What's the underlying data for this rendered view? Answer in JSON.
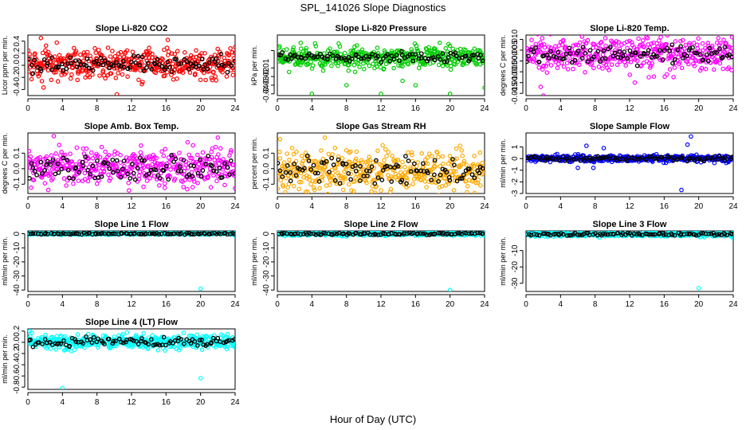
{
  "figure": {
    "title": "SPL_141026  Slope Diagnostics",
    "xlabel": "Hour of Day (UTC)"
  },
  "colors": {
    "background": "#ffffff",
    "axis": "#000000",
    "overlay": "#000000"
  },
  "chart_data": [
    {
      "type": "scatter",
      "title": "Slope Li-820 CO2",
      "ylabel": "Licor ppm per min.",
      "xlim": [
        0,
        24
      ],
      "ylim": [
        -0.5,
        0.5
      ],
      "yticks": [
        0.4,
        0.2,
        0.0,
        -0.2,
        -0.4
      ],
      "ytick_labels": [
        "0.4",
        "0.2",
        "0.0",
        "-0.2",
        "-0.4"
      ],
      "xticks": [
        0,
        4,
        8,
        12,
        16,
        20,
        24
      ],
      "xtick_labels": [
        "0",
        "4",
        "8",
        "12",
        "16",
        "20",
        "24"
      ],
      "series_color": "#ff0000",
      "core_range": [
        -0.08,
        0.12
      ],
      "spread": 0.25,
      "outliers": [
        [
          1.5,
          0.45
        ],
        [
          10.3,
          -0.48
        ],
        [
          16.2,
          0.42
        ],
        [
          24,
          0.3
        ]
      ],
      "series": [
        {
          "name": "samples",
          "color": "#ff0000"
        },
        {
          "name": "overlay",
          "color": "#000000"
        }
      ]
    },
    {
      "type": "scatter",
      "title": "Slope Li-820 Pressure",
      "ylabel": "kPa per min.",
      "xlim": [
        0,
        24
      ],
      "ylim": [
        -0.042,
        0.028
      ],
      "yticks": [
        0.01,
        -0.01,
        -0.02,
        -0.03,
        -0.04
      ],
      "ytick_labels": [
        "",
        "-0.01",
        "-0.02",
        "-0.03",
        "-0.04"
      ],
      "xticks": [
        0,
        4,
        8,
        12,
        16,
        20,
        24
      ],
      "xtick_labels": [
        "0",
        "4",
        "8",
        "12",
        "16",
        "20",
        "24"
      ],
      "series_color": "#00cc00",
      "core_range": [
        -0.002,
        0.006
      ],
      "spread": 0.012,
      "outliers": [
        [
          4,
          -0.04
        ],
        [
          8,
          -0.03
        ],
        [
          12,
          -0.04
        ],
        [
          16,
          -0.03
        ],
        [
          20,
          -0.04
        ],
        [
          24,
          -0.033
        ],
        [
          14.5,
          -0.025
        ],
        [
          2.7,
          0.019
        ],
        [
          18.8,
          0.019
        ]
      ],
      "series": [
        {
          "name": "samples",
          "color": "#00cc00"
        },
        {
          "name": "overlay",
          "color": "#000000"
        }
      ]
    },
    {
      "type": "scatter",
      "title": "Slope Li-820 Temp.",
      "ylabel": "degrees C per min.",
      "xlim": [
        0,
        24
      ],
      "ylim": [
        -0.016,
        0.012
      ],
      "yticks": [
        0.01,
        0.005,
        0.0,
        -0.005,
        -0.01,
        -0.015
      ],
      "ytick_labels": [
        "0.010",
        "0.005",
        "0.000",
        "-0.005",
        "-0.010",
        "-0.015"
      ],
      "xticks": [
        0,
        4,
        8,
        12,
        16,
        20,
        24
      ],
      "xtick_labels": [
        "0",
        "4",
        "8",
        "12",
        "16",
        "20",
        "24"
      ],
      "series_color": "#ff00ff",
      "core_range": [
        0.0,
        0.006
      ],
      "spread": 0.008,
      "outliers": [
        [
          1.7,
          -0.012
        ],
        [
          2,
          -0.016
        ],
        [
          15.6,
          0.011
        ],
        [
          12.6,
          -0.01
        ]
      ],
      "series": [
        {
          "name": "samples",
          "color": "#ff00ff"
        },
        {
          "name": "overlay",
          "color": "#000000"
        }
      ]
    },
    {
      "type": "scatter",
      "title": "Slope Amb. Box Temp.",
      "ylabel": "degrees C per min.",
      "xlim": [
        0,
        24
      ],
      "ylim": [
        -0.16,
        0.23
      ],
      "yticks": [
        0.1,
        0.0,
        -0.1
      ],
      "ytick_labels": [
        "0.1",
        "0.0",
        "-0.1"
      ],
      "xticks": [
        0,
        4,
        8,
        12,
        16,
        20,
        24
      ],
      "xtick_labels": [
        "0",
        "4",
        "8",
        "12",
        "16",
        "20",
        "24"
      ],
      "series_color": "#ff00ff",
      "core_range": [
        -0.06,
        0.08
      ],
      "spread": 0.09,
      "outliers": [
        [
          3,
          0.21
        ],
        [
          22,
          0.2
        ],
        [
          11.7,
          -0.14
        ],
        [
          18.5,
          0.17
        ]
      ],
      "series": [
        {
          "name": "samples",
          "color": "#ff00ff"
        },
        {
          "name": "overlay",
          "color": "#000000"
        }
      ]
    },
    {
      "type": "scatter",
      "title": "Slope Gas Stream RH",
      "ylabel": "percent per min.",
      "xlim": [
        0,
        24
      ],
      "ylim": [
        -0.16,
        0.23
      ],
      "yticks": [
        0.1,
        0.0,
        -0.1
      ],
      "ytick_labels": [
        "0.1",
        "0.0",
        "-0.1"
      ],
      "xticks": [
        0,
        4,
        8,
        12,
        16,
        20,
        24
      ],
      "xtick_labels": [
        "0",
        "4",
        "8",
        "12",
        "16",
        "20",
        "24"
      ],
      "series_color": "#ffaa00",
      "core_range": [
        -0.08,
        0.06
      ],
      "spread": 0.1,
      "outliers": [
        [
          0.3,
          0.19
        ],
        [
          5.5,
          0.2
        ],
        [
          3.5,
          -0.15
        ],
        [
          12,
          -0.14
        ]
      ],
      "series": [
        {
          "name": "samples",
          "color": "#ffaa00"
        },
        {
          "name": "overlay",
          "color": "#000000"
        }
      ]
    },
    {
      "type": "scatter",
      "title": "Slope Sample Flow",
      "ylabel": "ml/min per min.",
      "xlim": [
        0,
        24
      ],
      "ylim": [
        -3,
        2.2
      ],
      "yticks": [
        1,
        0,
        -1,
        -2,
        -3
      ],
      "ytick_labels": [
        "1",
        "0",
        "-1",
        "-2",
        "-3"
      ],
      "xticks": [
        0,
        4,
        8,
        12,
        16,
        20,
        24
      ],
      "xtick_labels": [
        "0",
        "4",
        "8",
        "12",
        "16",
        "20",
        "24"
      ],
      "series_color": "#0000ff",
      "core_range": [
        -0.15,
        0.15
      ],
      "spread": 0.25,
      "outliers": [
        [
          7,
          1.1
        ],
        [
          7.8,
          -0.8
        ],
        [
          18,
          -2.7
        ],
        [
          19.1,
          1.9
        ],
        [
          18.7,
          1.2
        ],
        [
          6,
          -0.8
        ],
        [
          9,
          0.9
        ]
      ],
      "series": [
        {
          "name": "samples",
          "color": "#0000ff"
        },
        {
          "name": "overlay",
          "color": "#000000"
        }
      ]
    },
    {
      "type": "scatter",
      "title": "Slope Line 1 Flow",
      "ylabel": "ml/min per min.",
      "xlim": [
        0,
        24
      ],
      "ylim": [
        -41,
        2
      ],
      "yticks": [
        0,
        -10,
        -20,
        -30,
        -40
      ],
      "ytick_labels": [
        "0",
        "-10",
        "-20",
        "-30",
        "-40"
      ],
      "xticks": [
        0,
        4,
        8,
        12,
        16,
        20,
        24
      ],
      "xtick_labels": [
        "0",
        "4",
        "8",
        "12",
        "16",
        "20",
        "24"
      ],
      "series_color": "#00ffff",
      "core_range": [
        -0.4,
        0.4
      ],
      "spread": 0.5,
      "outliers": [
        [
          20,
          -39
        ],
        [
          4,
          1.5
        ],
        [
          24,
          -1.7
        ]
      ],
      "series": [
        {
          "name": "samples",
          "color": "#00ffff"
        },
        {
          "name": "overlay",
          "color": "#000000"
        }
      ]
    },
    {
      "type": "scatter",
      "title": "Slope Line 2 Flow",
      "ylabel": "ml/min per min.",
      "xlim": [
        0,
        24
      ],
      "ylim": [
        -41,
        2
      ],
      "yticks": [
        0,
        -10,
        -20,
        -30,
        -40
      ],
      "ytick_labels": [
        "0",
        "-10",
        "-20",
        "-30",
        "-40"
      ],
      "xticks": [
        0,
        4,
        8,
        12,
        16,
        20,
        24
      ],
      "xtick_labels": [
        "0",
        "4",
        "8",
        "12",
        "16",
        "20",
        "24"
      ],
      "series_color": "#00ffff",
      "core_range": [
        -0.6,
        0.6
      ],
      "spread": 1.2,
      "outliers": [
        [
          20,
          -40
        ],
        [
          4,
          1.5
        ],
        [
          8,
          -2
        ],
        [
          24,
          -1.5
        ]
      ],
      "series": [
        {
          "name": "samples",
          "color": "#00ffff"
        },
        {
          "name": "overlay",
          "color": "#000000"
        }
      ]
    },
    {
      "type": "scatter",
      "title": "Slope Line 3 Flow",
      "ylabel": "ml/min per min.",
      "xlim": [
        0,
        24
      ],
      "ylim": [
        -35,
        2
      ],
      "yticks": [
        -10,
        -20,
        -30
      ],
      "ytick_labels": [
        "-10",
        "-20",
        "-30"
      ],
      "xticks": [
        0,
        4,
        8,
        12,
        16,
        20,
        24
      ],
      "xtick_labels": [
        "0",
        "4",
        "8",
        "12",
        "16",
        "20",
        "24"
      ],
      "series_color": "#00ffff",
      "core_range": [
        -0.6,
        0.6
      ],
      "spread": 1.3,
      "outliers": [
        [
          20,
          -33
        ],
        [
          4,
          1.4
        ],
        [
          10.3,
          1.6
        ],
        [
          24,
          -2.5
        ],
        [
          8.5,
          -2
        ]
      ],
      "series": [
        {
          "name": "samples",
          "color": "#00ffff"
        },
        {
          "name": "overlay",
          "color": "#000000"
        }
      ]
    },
    {
      "type": "scatter",
      "title": "Slope Line 4 (LT) Flow",
      "ylabel": "ml/min per min.",
      "xlim": [
        0,
        24
      ],
      "ylim": [
        -0.84,
        0.24
      ],
      "yticks": [
        0.2,
        0.0,
        -0.2,
        -0.4,
        -0.6,
        -0.8
      ],
      "ytick_labels": [
        "0.2",
        "0.0",
        "-0.2",
        "-0.4",
        "-0.6",
        "-0.8"
      ],
      "xticks": [
        0,
        4,
        8,
        12,
        16,
        20,
        24
      ],
      "xtick_labels": [
        "0",
        "4",
        "8",
        "12",
        "16",
        "20",
        "24"
      ],
      "series_color": "#00ffff",
      "core_range": [
        -0.06,
        0.08
      ],
      "spread": 0.1,
      "outliers": [
        [
          4,
          -0.82
        ],
        [
          20,
          -0.64
        ],
        [
          0.2,
          0.2
        ],
        [
          13.4,
          0.16
        ]
      ],
      "series": [
        {
          "name": "samples",
          "color": "#00ffff"
        },
        {
          "name": "overlay",
          "color": "#000000"
        }
      ]
    }
  ]
}
